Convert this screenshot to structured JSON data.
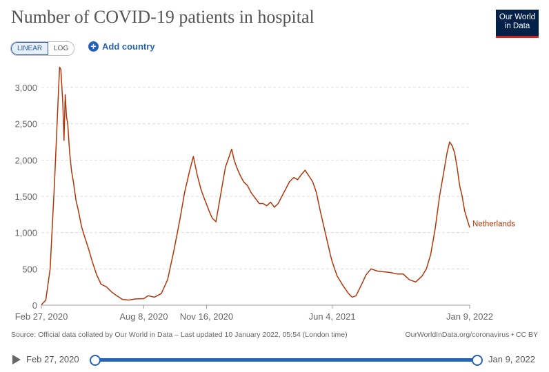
{
  "header": {
    "title": "Number of COVID-19 patients in hospital",
    "logo_line1": "Our World",
    "logo_line2": "in Data"
  },
  "controls": {
    "linear_label": "LINEAR",
    "log_label": "LOG",
    "add_country_label": "Add country",
    "add_icon": "plus-circle-icon"
  },
  "chart_data": {
    "type": "line",
    "title": "Number of COVID-19 patients in hospital",
    "xlabel": "",
    "ylabel": "",
    "ylim": [
      0,
      3000
    ],
    "xlim": [
      "2020-02-27",
      "2022-01-09"
    ],
    "y_ticks": [
      "0",
      "500",
      "1,000",
      "1,500",
      "2,000",
      "2,500",
      "3,000"
    ],
    "x_ticks": [
      "Feb 27, 2020",
      "Aug 8, 2020",
      "Nov 16, 2020",
      "Jun 4, 2021",
      "Jan 9, 2022"
    ],
    "grid": true,
    "legend": "end-of-line label",
    "series": [
      {
        "name": "Netherlands",
        "color": "#b13507",
        "points": [
          [
            "2020-02-27",
            5
          ],
          [
            "2020-03-05",
            70
          ],
          [
            "2020-03-12",
            500
          ],
          [
            "2020-03-19",
            1700
          ],
          [
            "2020-03-25",
            2900
          ],
          [
            "2020-03-27",
            3280
          ],
          [
            "2020-03-29",
            3250
          ],
          [
            "2020-04-01",
            2800
          ],
          [
            "2020-04-03",
            2270
          ],
          [
            "2020-04-05",
            2900
          ],
          [
            "2020-04-07",
            2600
          ],
          [
            "2020-04-09",
            2500
          ],
          [
            "2020-04-12",
            2100
          ],
          [
            "2020-04-15",
            1850
          ],
          [
            "2020-04-18",
            1700
          ],
          [
            "2020-04-22",
            1450
          ],
          [
            "2020-04-26",
            1300
          ],
          [
            "2020-05-01",
            1080
          ],
          [
            "2020-05-06",
            940
          ],
          [
            "2020-05-12",
            780
          ],
          [
            "2020-05-18",
            600
          ],
          [
            "2020-05-25",
            420
          ],
          [
            "2020-06-01",
            290
          ],
          [
            "2020-06-10",
            250
          ],
          [
            "2020-06-18",
            180
          ],
          [
            "2020-06-26",
            130
          ],
          [
            "2020-07-05",
            80
          ],
          [
            "2020-07-15",
            70
          ],
          [
            "2020-07-25",
            85
          ],
          [
            "2020-08-08",
            90
          ],
          [
            "2020-08-15",
            130
          ],
          [
            "2020-08-25",
            110
          ],
          [
            "2020-09-05",
            160
          ],
          [
            "2020-09-15",
            350
          ],
          [
            "2020-09-25",
            750
          ],
          [
            "2020-10-05",
            1200
          ],
          [
            "2020-10-12",
            1550
          ],
          [
            "2020-10-20",
            1850
          ],
          [
            "2020-10-26",
            2050
          ],
          [
            "2020-11-01",
            1800
          ],
          [
            "2020-11-07",
            1600
          ],
          [
            "2020-11-12",
            1480
          ],
          [
            "2020-11-16",
            1390
          ],
          [
            "2020-11-20",
            1300
          ],
          [
            "2020-11-25",
            1200
          ],
          [
            "2020-12-01",
            1150
          ],
          [
            "2020-12-06",
            1400
          ],
          [
            "2020-12-10",
            1600
          ],
          [
            "2020-12-16",
            1900
          ],
          [
            "2020-12-22",
            2050
          ],
          [
            "2020-12-26",
            2150
          ],
          [
            "2020-12-30",
            2000
          ],
          [
            "2021-01-03",
            1900
          ],
          [
            "2021-01-08",
            1800
          ],
          [
            "2021-01-14",
            1700
          ],
          [
            "2021-01-20",
            1650
          ],
          [
            "2021-01-26",
            1550
          ],
          [
            "2021-02-01",
            1480
          ],
          [
            "2021-02-08",
            1400
          ],
          [
            "2021-02-14",
            1400
          ],
          [
            "2021-02-20",
            1370
          ],
          [
            "2021-02-26",
            1420
          ],
          [
            "2021-03-04",
            1350
          ],
          [
            "2021-03-10",
            1400
          ],
          [
            "2021-03-16",
            1500
          ],
          [
            "2021-03-22",
            1600
          ],
          [
            "2021-03-28",
            1700
          ],
          [
            "2021-04-04",
            1760
          ],
          [
            "2021-04-10",
            1730
          ],
          [
            "2021-04-16",
            1800
          ],
          [
            "2021-04-22",
            1860
          ],
          [
            "2021-04-28",
            1780
          ],
          [
            "2021-05-04",
            1700
          ],
          [
            "2021-05-10",
            1550
          ],
          [
            "2021-05-16",
            1300
          ],
          [
            "2021-05-24",
            1000
          ],
          [
            "2021-06-01",
            700
          ],
          [
            "2021-06-04",
            600
          ],
          [
            "2021-06-12",
            400
          ],
          [
            "2021-06-22",
            260
          ],
          [
            "2021-06-30",
            160
          ],
          [
            "2021-07-06",
            110
          ],
          [
            "2021-07-12",
            130
          ],
          [
            "2021-07-20",
            270
          ],
          [
            "2021-07-28",
            420
          ],
          [
            "2021-08-05",
            500
          ],
          [
            "2021-08-15",
            470
          ],
          [
            "2021-08-25",
            460
          ],
          [
            "2021-09-05",
            450
          ],
          [
            "2021-09-15",
            430
          ],
          [
            "2021-09-25",
            430
          ],
          [
            "2021-10-05",
            350
          ],
          [
            "2021-10-15",
            320
          ],
          [
            "2021-10-25",
            400
          ],
          [
            "2021-11-01",
            500
          ],
          [
            "2021-11-08",
            700
          ],
          [
            "2021-11-15",
            1050
          ],
          [
            "2021-11-22",
            1500
          ],
          [
            "2021-11-28",
            1800
          ],
          [
            "2021-12-04",
            2100
          ],
          [
            "2021-12-08",
            2250
          ],
          [
            "2021-12-12",
            2200
          ],
          [
            "2021-12-16",
            2100
          ],
          [
            "2021-12-20",
            1900
          ],
          [
            "2021-12-24",
            1650
          ],
          [
            "2021-12-28",
            1500
          ],
          [
            "2022-01-01",
            1300
          ],
          [
            "2022-01-05",
            1180
          ],
          [
            "2022-01-09",
            1070
          ]
        ]
      }
    ]
  },
  "footer": {
    "source": "Source: Official data collated by Our World in Data – Last updated 10 January 2022, 05:54 (London time)",
    "license": "OurWorldInData.org/coronavirus • CC BY"
  },
  "timeline": {
    "start_label": "Feb 27, 2020",
    "end_label": "Jan 9, 2022",
    "play_icon": "play-icon",
    "accent": "#2462b8"
  }
}
